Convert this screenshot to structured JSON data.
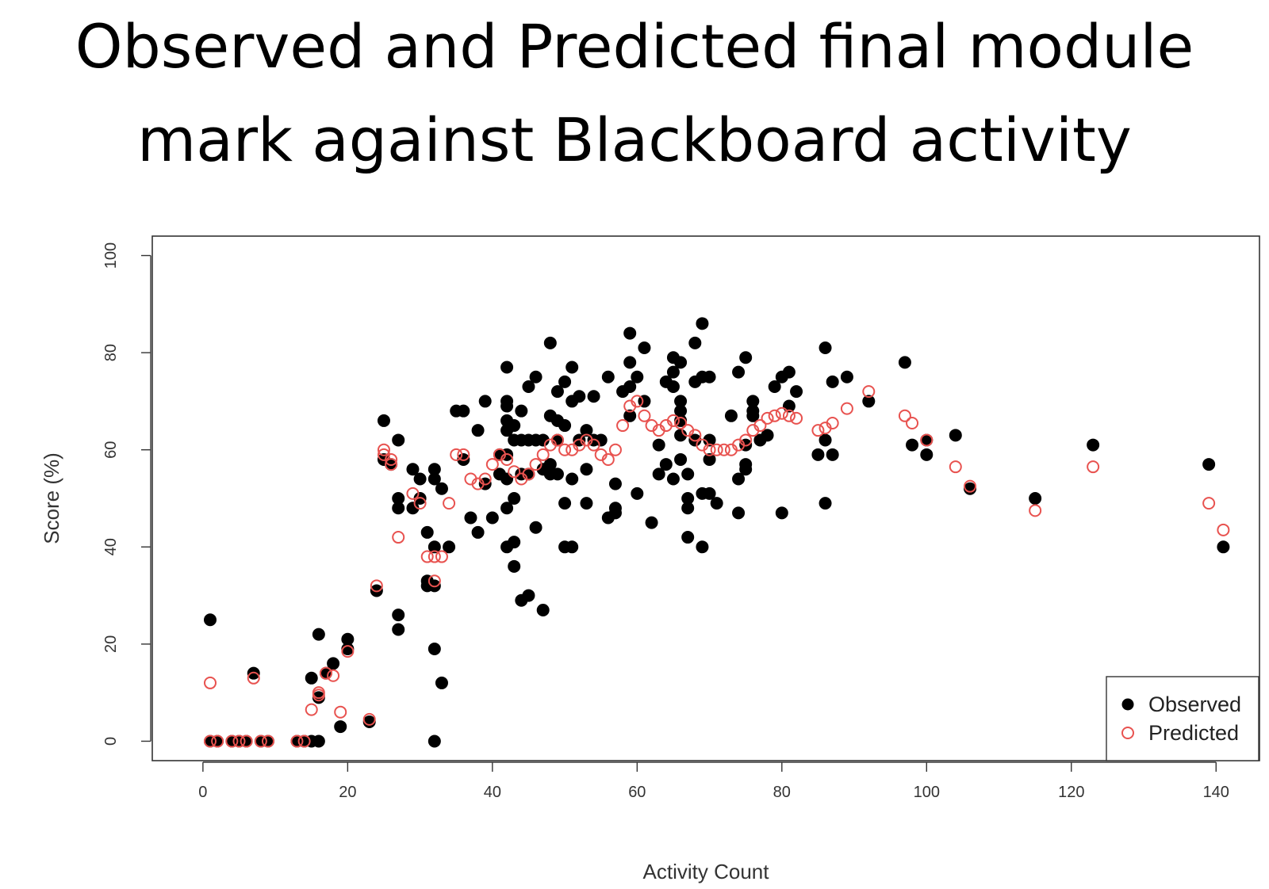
{
  "chart_data": {
    "type": "scatter",
    "title_lines": [
      "Observed and Predicted final module",
      "mark against Blackboard activity"
    ],
    "xlabel": "Activity  Count",
    "ylabel": "Score (%)",
    "xlim": [
      -7,
      146
    ],
    "ylim": [
      -4,
      104
    ],
    "xticks": [
      0,
      20,
      40,
      60,
      80,
      100,
      120,
      140
    ],
    "yticks": [
      0,
      20,
      40,
      60,
      80,
      100
    ],
    "xtick_labels": [
      "0",
      "20",
      "40",
      "60",
      "80",
      "100",
      "120",
      "140"
    ],
    "ytick_labels": [
      "0",
      "20",
      "40",
      "60",
      "80",
      "100"
    ],
    "grid": false,
    "legend_position": "bottom-right",
    "series": [
      {
        "name": "Observed",
        "marker": "filled-circle",
        "color": "#000000",
        "points": [
          [
            1,
            25
          ],
          [
            1,
            0
          ],
          [
            2,
            0
          ],
          [
            4,
            0
          ],
          [
            5,
            0
          ],
          [
            6,
            0
          ],
          [
            7,
            14
          ],
          [
            8,
            0
          ],
          [
            9,
            0
          ],
          [
            13,
            0
          ],
          [
            14,
            0
          ],
          [
            15,
            13
          ],
          [
            15,
            0
          ],
          [
            16,
            22
          ],
          [
            16,
            9
          ],
          [
            16,
            0
          ],
          [
            17,
            14
          ],
          [
            18,
            16
          ],
          [
            19,
            3
          ],
          [
            20,
            21
          ],
          [
            20,
            19
          ],
          [
            23,
            4
          ],
          [
            24,
            31
          ],
          [
            25,
            66
          ],
          [
            25,
            58
          ],
          [
            26,
            57
          ],
          [
            27,
            62
          ],
          [
            27,
            50
          ],
          [
            27,
            48
          ],
          [
            27,
            26
          ],
          [
            27,
            23
          ],
          [
            29,
            56
          ],
          [
            29,
            48
          ],
          [
            30,
            54
          ],
          [
            30,
            50
          ],
          [
            31,
            43
          ],
          [
            31,
            33
          ],
          [
            31,
            32
          ],
          [
            32,
            56
          ],
          [
            32,
            54
          ],
          [
            32,
            40
          ],
          [
            32,
            32
          ],
          [
            32,
            19
          ],
          [
            32,
            0
          ],
          [
            33,
            52
          ],
          [
            33,
            12
          ],
          [
            34,
            40
          ],
          [
            35,
            68
          ],
          [
            36,
            68
          ],
          [
            36,
            58
          ],
          [
            37,
            46
          ],
          [
            38,
            64
          ],
          [
            38,
            43
          ],
          [
            39,
            53
          ],
          [
            39,
            70
          ],
          [
            40,
            46
          ],
          [
            41,
            59
          ],
          [
            41,
            55
          ],
          [
            42,
            77
          ],
          [
            42,
            70
          ],
          [
            42,
            69
          ],
          [
            42,
            66
          ],
          [
            42,
            64
          ],
          [
            42,
            59
          ],
          [
            42,
            54
          ],
          [
            42,
            48
          ],
          [
            42,
            40
          ],
          [
            43,
            65
          ],
          [
            43,
            62
          ],
          [
            43,
            50
          ],
          [
            43,
            41
          ],
          [
            43,
            36
          ],
          [
            44,
            68
          ],
          [
            44,
            62
          ],
          [
            44,
            55
          ],
          [
            44,
            29
          ],
          [
            45,
            73
          ],
          [
            45,
            62
          ],
          [
            45,
            55
          ],
          [
            45,
            30
          ],
          [
            46,
            75
          ],
          [
            46,
            62
          ],
          [
            46,
            44
          ],
          [
            47,
            62
          ],
          [
            47,
            56
          ],
          [
            47,
            27
          ],
          [
            48,
            82
          ],
          [
            48,
            67
          ],
          [
            48,
            57
          ],
          [
            48,
            55
          ],
          [
            49,
            72
          ],
          [
            49,
            66
          ],
          [
            49,
            62
          ],
          [
            49,
            55
          ],
          [
            50,
            74
          ],
          [
            50,
            65
          ],
          [
            50,
            49
          ],
          [
            50,
            40
          ],
          [
            51,
            77
          ],
          [
            51,
            70
          ],
          [
            51,
            54
          ],
          [
            51,
            40
          ],
          [
            52,
            71
          ],
          [
            52,
            62
          ],
          [
            53,
            64
          ],
          [
            53,
            56
          ],
          [
            53,
            49
          ],
          [
            54,
            71
          ],
          [
            54,
            62
          ],
          [
            55,
            62
          ],
          [
            56,
            75
          ],
          [
            56,
            46
          ],
          [
            57,
            53
          ],
          [
            57,
            48
          ],
          [
            57,
            47
          ],
          [
            58,
            72
          ],
          [
            59,
            84
          ],
          [
            59,
            78
          ],
          [
            59,
            73
          ],
          [
            59,
            67
          ],
          [
            60,
            75
          ],
          [
            60,
            51
          ],
          [
            61,
            81
          ],
          [
            61,
            70
          ],
          [
            62,
            45
          ],
          [
            63,
            61
          ],
          [
            63,
            55
          ],
          [
            64,
            74
          ],
          [
            64,
            57
          ],
          [
            65,
            79
          ],
          [
            65,
            76
          ],
          [
            65,
            73
          ],
          [
            65,
            54
          ],
          [
            66,
            78
          ],
          [
            66,
            70
          ],
          [
            66,
            68
          ],
          [
            66,
            66
          ],
          [
            66,
            63
          ],
          [
            66,
            58
          ],
          [
            67,
            55
          ],
          [
            67,
            50
          ],
          [
            67,
            48
          ],
          [
            67,
            42
          ],
          [
            68,
            82
          ],
          [
            68,
            74
          ],
          [
            68,
            62
          ],
          [
            69,
            86
          ],
          [
            69,
            75
          ],
          [
            69,
            51
          ],
          [
            69,
            40
          ],
          [
            70,
            75
          ],
          [
            70,
            62
          ],
          [
            70,
            58
          ],
          [
            70,
            51
          ],
          [
            71,
            49
          ],
          [
            73,
            67
          ],
          [
            74,
            76
          ],
          [
            74,
            54
          ],
          [
            74,
            47
          ],
          [
            75,
            79
          ],
          [
            75,
            57
          ],
          [
            75,
            56
          ],
          [
            75,
            61
          ],
          [
            76,
            70
          ],
          [
            76,
            68
          ],
          [
            76,
            67
          ],
          [
            77,
            62
          ],
          [
            78,
            63
          ],
          [
            79,
            73
          ],
          [
            80,
            75
          ],
          [
            80,
            47
          ],
          [
            81,
            76
          ],
          [
            81,
            69
          ],
          [
            82,
            72
          ],
          [
            85,
            59
          ],
          [
            86,
            81
          ],
          [
            86,
            62
          ],
          [
            86,
            49
          ],
          [
            87,
            74
          ],
          [
            87,
            59
          ],
          [
            89,
            75
          ],
          [
            92,
            70
          ],
          [
            97,
            78
          ],
          [
            98,
            61
          ],
          [
            100,
            62
          ],
          [
            100,
            59
          ],
          [
            104,
            63
          ],
          [
            106,
            52
          ],
          [
            115,
            50
          ],
          [
            123,
            61
          ],
          [
            139,
            57
          ],
          [
            141,
            40
          ]
        ]
      },
      {
        "name": "Predicted",
        "marker": "open-circle",
        "color": "#e8524f",
        "points": [
          [
            1,
            12
          ],
          [
            1,
            0
          ],
          [
            2,
            0
          ],
          [
            4,
            0
          ],
          [
            5,
            0
          ],
          [
            6,
            0
          ],
          [
            7,
            13
          ],
          [
            8,
            0
          ],
          [
            9,
            0
          ],
          [
            13,
            0
          ],
          [
            14,
            0
          ],
          [
            15,
            6.5
          ],
          [
            16,
            10
          ],
          [
            16,
            9.5
          ],
          [
            17,
            14
          ],
          [
            18,
            13.5
          ],
          [
            19,
            6
          ],
          [
            20,
            18.5
          ],
          [
            23,
            4.5
          ],
          [
            24,
            32
          ],
          [
            25,
            60
          ],
          [
            25,
            59
          ],
          [
            26,
            57
          ],
          [
            26,
            58
          ],
          [
            27,
            42
          ],
          [
            29,
            51
          ],
          [
            30,
            49
          ],
          [
            31,
            38
          ],
          [
            32,
            33
          ],
          [
            32,
            38
          ],
          [
            33,
            38
          ],
          [
            34,
            49
          ],
          [
            35,
            59
          ],
          [
            36,
            59
          ],
          [
            37,
            54
          ],
          [
            38,
            53
          ],
          [
            39,
            54
          ],
          [
            40,
            57
          ],
          [
            41,
            59
          ],
          [
            42,
            58
          ],
          [
            43,
            55.5
          ],
          [
            44,
            54
          ],
          [
            45,
            55
          ],
          [
            46,
            57
          ],
          [
            47,
            59
          ],
          [
            48,
            61
          ],
          [
            49,
            62
          ],
          [
            50,
            60
          ],
          [
            51,
            60
          ],
          [
            52,
            61
          ],
          [
            53,
            62
          ],
          [
            54,
            61
          ],
          [
            55,
            59
          ],
          [
            56,
            58
          ],
          [
            57,
            60
          ],
          [
            58,
            65
          ],
          [
            59,
            69
          ],
          [
            60,
            70
          ],
          [
            61,
            67
          ],
          [
            62,
            65
          ],
          [
            63,
            64
          ],
          [
            64,
            65
          ],
          [
            65,
            66
          ],
          [
            66,
            65.5
          ],
          [
            67,
            64
          ],
          [
            68,
            63
          ],
          [
            69,
            61
          ],
          [
            70,
            60
          ],
          [
            71,
            60
          ],
          [
            72,
            60
          ],
          [
            73,
            60
          ],
          [
            74,
            61
          ],
          [
            75,
            62
          ],
          [
            76,
            64
          ],
          [
            77,
            65
          ],
          [
            78,
            66.5
          ],
          [
            79,
            67
          ],
          [
            80,
            67.5
          ],
          [
            81,
            67
          ],
          [
            82,
            66.5
          ],
          [
            85,
            64
          ],
          [
            86,
            64.5
          ],
          [
            87,
            65.5
          ],
          [
            89,
            68.5
          ],
          [
            92,
            72
          ],
          [
            97,
            67
          ],
          [
            98,
            65.5
          ],
          [
            100,
            62
          ],
          [
            104,
            56.5
          ],
          [
            106,
            52.5
          ],
          [
            115,
            47.5
          ],
          [
            123,
            56.5
          ],
          [
            139,
            49
          ],
          [
            141,
            43.5
          ]
        ]
      }
    ]
  }
}
